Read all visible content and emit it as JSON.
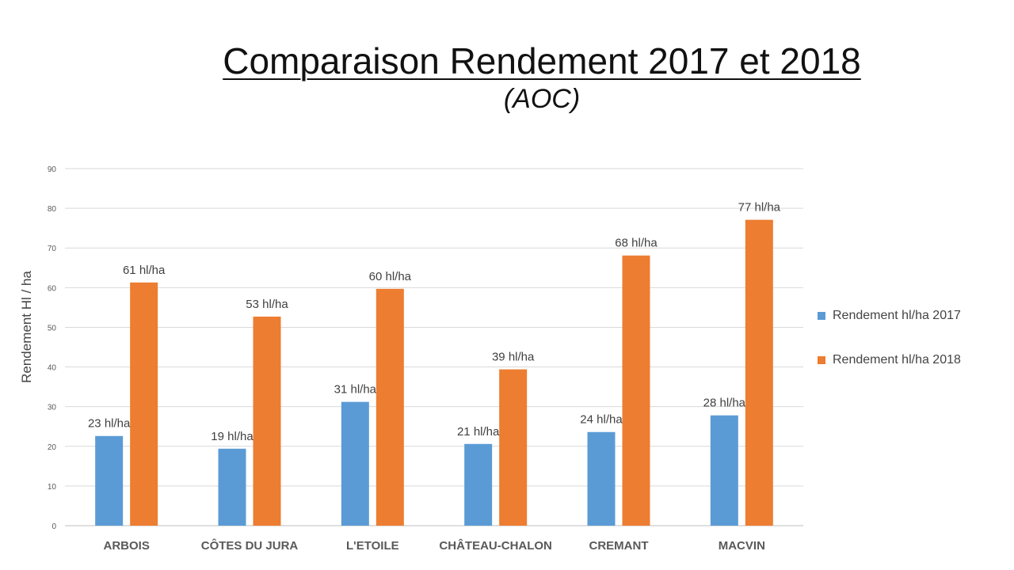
{
  "chart_data": {
    "type": "bar",
    "title": "Comparaison Rendement 2017 et 2018",
    "subtitle": "(AOC)",
    "ylabel": "Rendement  Hl / ha",
    "xlabel": "",
    "ylim": [
      0,
      90
    ],
    "yticks": [
      0,
      10,
      20,
      30,
      40,
      50,
      60,
      70,
      80,
      90
    ],
    "grid": true,
    "legend_position": "right",
    "categories": [
      "ARBOIS",
      "CÔTES DU JURA",
      "L'ETOILE",
      "CHÂTEAU-CHALON",
      "CREMANT",
      "MACVIN"
    ],
    "series": [
      {
        "name": "Rendement hl/ha 2017",
        "color": "#5b9bd5",
        "values": [
          22.6,
          19.4,
          31.2,
          20.6,
          23.6,
          27.8
        ],
        "labels": [
          "23 hl/ha",
          "19 hl/ha",
          "31 hl/ha",
          "21 hl/ha",
          "24 hl/ha",
          "28 hl/ha"
        ]
      },
      {
        "name": "Rendement hl/ha 2018",
        "color": "#ed7d31",
        "values": [
          61.3,
          52.7,
          59.7,
          39.4,
          68.1,
          77.1
        ],
        "labels": [
          "61 hl/ha",
          "53 hl/ha",
          "60 hl/ha",
          "39 hl/ha",
          "68 hl/ha",
          "77 hl/ha"
        ]
      }
    ]
  }
}
